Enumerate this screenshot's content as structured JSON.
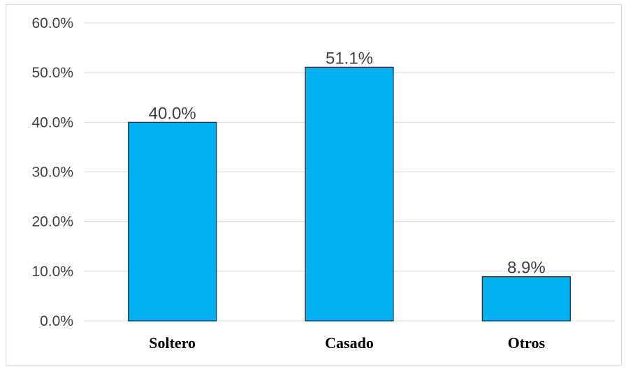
{
  "chart_data": {
    "type": "bar",
    "categories": [
      "Soltero",
      "Casado",
      "Otros"
    ],
    "values": [
      40.0,
      51.1,
      8.9
    ],
    "value_labels": [
      "40.0%",
      "51.1%",
      "8.9%"
    ],
    "title": "",
    "xlabel": "",
    "ylabel": "",
    "ylim": [
      0,
      60
    ],
    "y_ticks": [
      0,
      10,
      20,
      30,
      40,
      50,
      60
    ],
    "y_tick_labels": [
      "0.0%",
      "10.0%",
      "20.0%",
      "30.0%",
      "40.0%",
      "50.0%",
      "60.0%"
    ],
    "grid": true,
    "legend": "none",
    "colors": {
      "bar_fill": "#00b0f0",
      "bar_stroke": "#1f2a33",
      "gridline": "#d9d9d9"
    }
  }
}
